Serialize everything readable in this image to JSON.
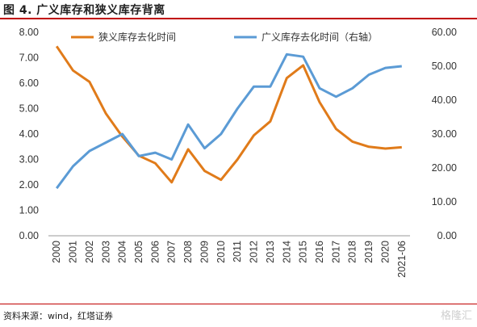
{
  "header": {
    "title": "图 4. 广义库存和狭义库存背离"
  },
  "footer": {
    "source": "资料来源：wind，红塔证券",
    "watermark": "格隆汇"
  },
  "chart_data": {
    "type": "line",
    "categories": [
      "2000",
      "2001",
      "2002",
      "2003",
      "2004",
      "2005",
      "2006",
      "2007",
      "2008",
      "2009",
      "2010",
      "2011",
      "2012",
      "2013",
      "2014",
      "2015",
      "2016",
      "2017",
      "2018",
      "2019",
      "2020",
      "2021-06"
    ],
    "left_axis": {
      "ylim": [
        0,
        8
      ],
      "ticks": [
        "0.00",
        "1.00",
        "2.00",
        "3.00",
        "4.00",
        "5.00",
        "6.00",
        "7.00",
        "8.00"
      ]
    },
    "right_axis": {
      "ylim": [
        0,
        60
      ],
      "ticks": [
        "0.00",
        "10.00",
        "20.00",
        "30.00",
        "40.00",
        "50.00",
        "60.00"
      ]
    },
    "series": [
      {
        "name": "狭义库存去化时间",
        "axis": "left",
        "color": "#E07B1A",
        "values": [
          7.45,
          6.5,
          6.05,
          4.8,
          3.9,
          3.15,
          2.85,
          2.1,
          3.4,
          2.55,
          2.2,
          3.0,
          3.95,
          4.5,
          6.2,
          6.7,
          5.25,
          4.2,
          3.7,
          3.5,
          3.43,
          3.48
        ]
      },
      {
        "name": "广义库存去化时间（右轴）",
        "axis": "right",
        "color": "#5B9BD5",
        "values": [
          14.0,
          20.5,
          25.0,
          27.5,
          30.0,
          23.5,
          24.5,
          22.5,
          32.8,
          25.8,
          30.0,
          37.5,
          44.0,
          44.0,
          53.5,
          52.8,
          43.5,
          41.0,
          43.5,
          47.5,
          49.5,
          50.0
        ]
      }
    ],
    "legend": "top-inside",
    "grid": false
  }
}
